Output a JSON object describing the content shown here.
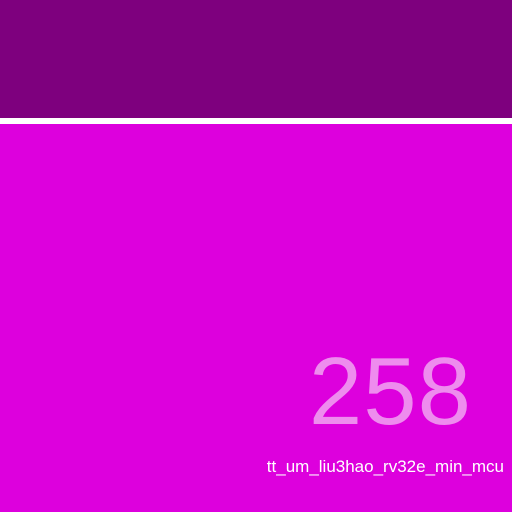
{
  "colors": {
    "top_bar": "#7e007e",
    "divider": "#ffffff",
    "panel": "#dd00dd",
    "number_text": "#ee8cee",
    "caption_text": "#ffffff"
  },
  "panel": {
    "value": "258",
    "caption": "tt_um_liu3hao_rv32e_min_mcu"
  }
}
